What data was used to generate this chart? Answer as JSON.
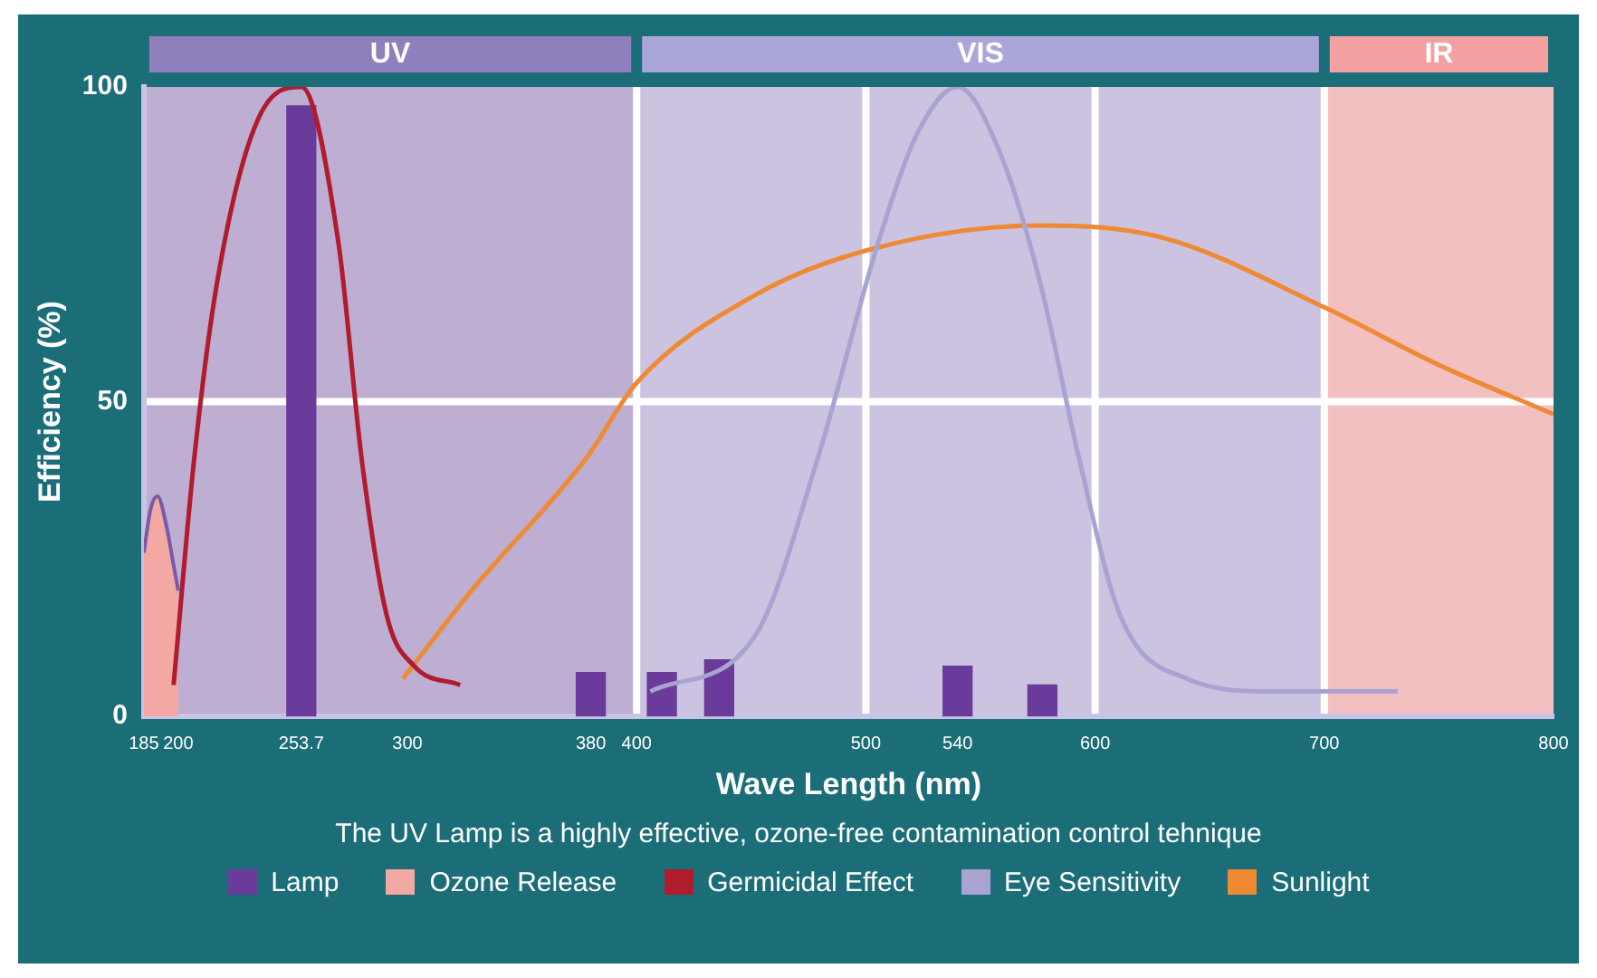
{
  "chart_data": {
    "type": "line",
    "xlabel": "Wave Length (nm)",
    "ylabel": "Efficiency (%)",
    "xlim": [
      185,
      800
    ],
    "xticks": [
      185,
      200,
      253.7,
      300,
      380,
      400,
      500,
      540,
      600,
      700,
      800
    ],
    "ylim": [
      0,
      100
    ],
    "yticks": [
      0,
      50,
      100
    ],
    "grid": false,
    "legend": "bottom",
    "marker": "none",
    "annotations": [
      "The UV Lamp is a highly effective, ozone-free contamination control tehnique"
    ],
    "bands": [
      {
        "axis": "x",
        "from": 185,
        "to": 400,
        "label": "UV",
        "color": "#8f80bd"
      },
      {
        "axis": "x",
        "from": 400,
        "to": 700,
        "label": "VIS",
        "color": "#aba6d9"
      },
      {
        "axis": "x",
        "from": 700,
        "to": 800,
        "label": "IR",
        "color": "#f2a1a0"
      }
    ],
    "ref_lines": [
      {
        "axis": "x",
        "value": 400,
        "color": "#ffffff"
      },
      {
        "axis": "x",
        "value": 500,
        "color": "#ffffff"
      },
      {
        "axis": "x",
        "value": 600,
        "color": "#ffffff"
      },
      {
        "axis": "x",
        "value": 700,
        "color": "#ffffff"
      },
      {
        "axis": "y",
        "value": 50,
        "color": "#ffffff"
      }
    ],
    "series": [
      {
        "name": "Lamp",
        "type": "bar",
        "color": "#6b3b9c",
        "x": [
          253.7,
          380,
          411,
          436,
          540,
          577
        ],
        "values": [
          97,
          7,
          7,
          9,
          8,
          5
        ]
      },
      {
        "name": "Ozone Release",
        "type": "area",
        "color": "#f4a8a4",
        "x": [
          185,
          188,
          191,
          195,
          198,
          200
        ],
        "values": [
          26,
          33,
          35,
          30,
          24,
          20
        ]
      },
      {
        "name": "Germicidal Effect",
        "color": "#b01c2e",
        "x": [
          198,
          207,
          217,
          235,
          253.7,
          270,
          280,
          291,
          303,
          323
        ],
        "values": [
          5,
          41,
          69,
          95,
          100,
          75,
          41,
          16,
          8,
          5
        ]
      },
      {
        "name": "Eye Sensitivity",
        "color": "#a9a3d2",
        "x": [
          406,
          452,
          479,
          506,
          523,
          540,
          558,
          576,
          593,
          611,
          640,
          677,
          732
        ],
        "values": [
          4,
          13,
          41,
          76,
          93,
          100,
          90,
          69,
          41,
          16,
          6,
          4,
          4
        ]
      },
      {
        "name": "Sunlight",
        "color": "#ee8a34",
        "x": [
          298,
          328,
          378,
          400,
          452,
          500,
          576,
          630,
          700,
          749,
          800
        ],
        "values": [
          6,
          20,
          41,
          53,
          67,
          74,
          78,
          76,
          65,
          56,
          48
        ]
      }
    ]
  }
}
